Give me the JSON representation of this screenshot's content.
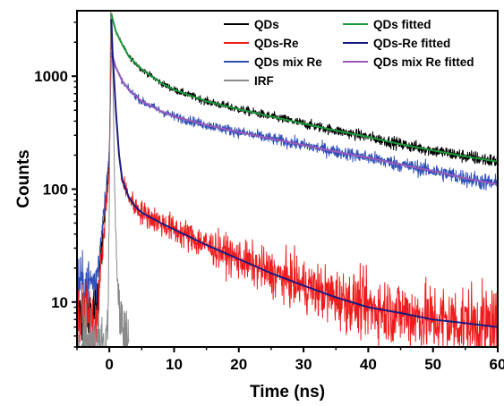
{
  "chart_data": {
    "type": "line",
    "xlabel": "Time (ns)",
    "ylabel": "Counts",
    "xlim": [
      -5,
      60
    ],
    "ylim": [
      4,
      3800
    ],
    "yscale": "log",
    "x_ticks": [
      0,
      10,
      20,
      30,
      40,
      50,
      60
    ],
    "y_ticks": [
      {
        "value": 10,
        "label": "10"
      },
      {
        "value": 100,
        "label": "100"
      },
      {
        "value": 1000,
        "label": "1000"
      }
    ],
    "grid": false,
    "legend_placement": "top-right",
    "series": [
      {
        "name": "QDs",
        "color": "#000000",
        "kind": "data",
        "x": [
          -5,
          -2,
          0,
          0.3,
          0.5,
          1,
          2,
          3,
          5,
          8,
          10,
          15,
          20,
          25,
          30,
          35,
          40,
          45,
          50,
          55,
          60
        ],
        "y": [
          8,
          8,
          200,
          3600,
          3200,
          2500,
          1900,
          1500,
          1150,
          870,
          760,
          600,
          510,
          440,
          380,
          330,
          290,
          250,
          220,
          195,
          175
        ]
      },
      {
        "name": "QDs-Re",
        "color": "#ee1c1c",
        "kind": "data",
        "x": [
          -5,
          -2,
          0,
          0.3,
          0.5,
          1,
          1.5,
          2,
          3,
          4,
          5,
          8,
          10,
          15,
          20,
          25,
          30,
          35,
          40,
          45,
          50,
          55,
          60
        ],
        "y": [
          7,
          7,
          150,
          3200,
          1600,
          500,
          200,
          120,
          85,
          70,
          62,
          50,
          44,
          32,
          24,
          18,
          14,
          11,
          9,
          8,
          7,
          6.5,
          6
        ]
      },
      {
        "name": "QDs mix Re",
        "color": "#3050b8",
        "kind": "data",
        "x": [
          -5,
          -2,
          0,
          0.3,
          0.5,
          1,
          2,
          3,
          5,
          8,
          10,
          15,
          20,
          25,
          30,
          35,
          40,
          45,
          50,
          55,
          60
        ],
        "y": [
          15,
          15,
          200,
          1600,
          1500,
          1200,
          900,
          760,
          600,
          490,
          440,
          370,
          320,
          280,
          245,
          215,
          190,
          165,
          145,
          125,
          110
        ]
      },
      {
        "name": "IRF",
        "color": "#8a8a8a",
        "kind": "data",
        "x": [
          -5,
          -0.5,
          -0.2,
          0,
          0.2,
          0.4,
          0.6,
          0.8,
          1,
          1.3,
          1.6,
          2,
          2.5,
          3
        ],
        "y": [
          4,
          4,
          8,
          80,
          3800,
          3000,
          700,
          120,
          40,
          15,
          8,
          6,
          4.5,
          4
        ]
      },
      {
        "name": "QDs fitted",
        "color": "#1a9a3a",
        "kind": "fit",
        "x": [
          0.3,
          0.5,
          1,
          2,
          3,
          5,
          8,
          10,
          15,
          20,
          25,
          30,
          35,
          40,
          45,
          50,
          55,
          60
        ],
        "y": [
          3600,
          3200,
          2500,
          1900,
          1500,
          1150,
          870,
          760,
          600,
          510,
          440,
          380,
          330,
          290,
          250,
          220,
          195,
          175
        ]
      },
      {
        "name": "QDs-Re fitted",
        "color": "#1a1a80",
        "kind": "fit",
        "x": [
          0.3,
          0.5,
          1,
          1.5,
          2,
          3,
          4,
          5,
          8,
          10,
          15,
          20,
          25,
          30,
          35,
          40,
          45,
          50,
          55,
          60
        ],
        "y": [
          3200,
          1600,
          500,
          200,
          120,
          85,
          70,
          62,
          50,
          44,
          32,
          24,
          18,
          14,
          11,
          9,
          8,
          7,
          6.5,
          6
        ]
      },
      {
        "name": "QDs mix Re fitted",
        "color": "#9a5ab8",
        "kind": "fit",
        "x": [
          0.3,
          0.5,
          1,
          2,
          3,
          5,
          8,
          10,
          15,
          20,
          25,
          30,
          35,
          40,
          45,
          50,
          55,
          60
        ],
        "y": [
          1600,
          1500,
          1200,
          900,
          760,
          600,
          490,
          440,
          370,
          320,
          280,
          245,
          215,
          190,
          165,
          145,
          125,
          110
        ]
      }
    ],
    "legend": [
      {
        "label": "QDs",
        "color": "#000000"
      },
      {
        "label": "QDs fitted",
        "color": "#1a9a3a"
      },
      {
        "label": "QDs-Re",
        "color": "#ee1c1c"
      },
      {
        "label": "QDs-Re fitted",
        "color": "#1a1a80"
      },
      {
        "label": "QDs mix Re",
        "color": "#3050b8"
      },
      {
        "label": "QDs mix Re fitted",
        "color": "#9a5ab8"
      },
      {
        "label": "IRF",
        "color": "#8a8a8a"
      }
    ]
  }
}
